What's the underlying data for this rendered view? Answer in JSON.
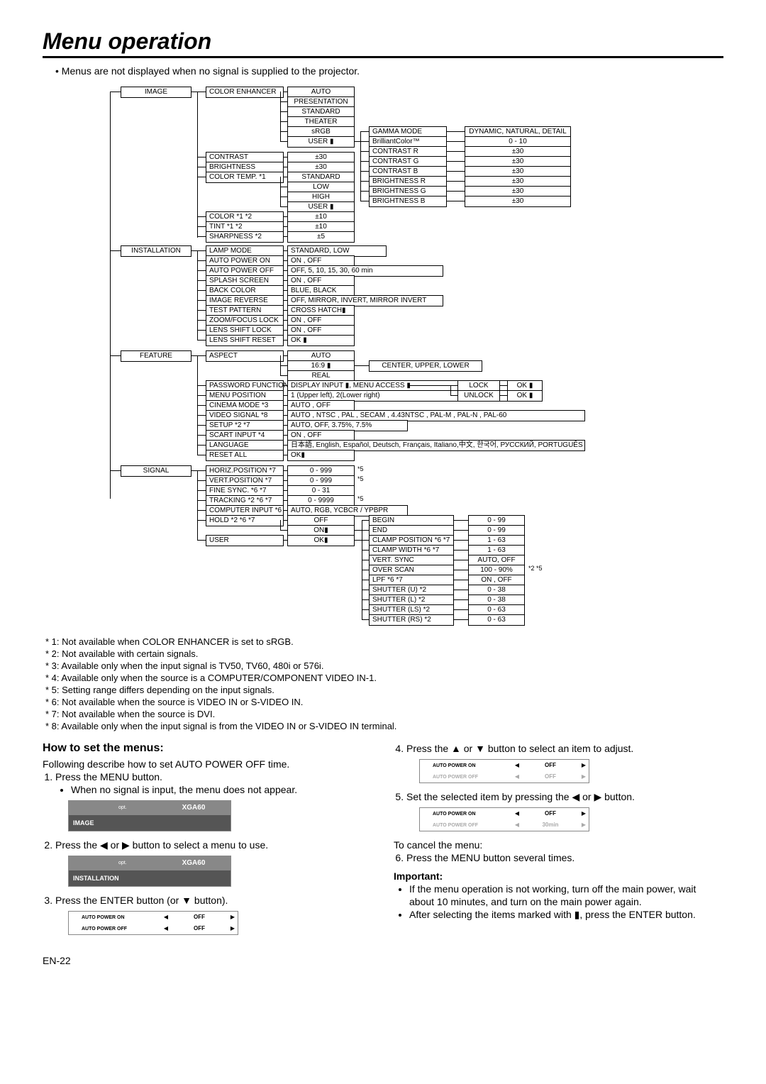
{
  "title": "Menu operation",
  "intro": "Menus are not displayed when no signal is supplied to the projector.",
  "page_num": "EN-22",
  "notes": [
    "* 1: Not available when COLOR ENHANCER is set to sRGB.",
    "* 2: Not available with certain signals.",
    "* 3: Available only when the input signal is TV50, TV60, 480i or 576i.",
    "* 4: Available only when the source is a COMPUTER/COMPONENT VIDEO IN-1.",
    "* 5: Setting range differs depending on the input signals.",
    "* 6: Not available when the source is VIDEO IN or S-VIDEO IN.",
    "* 7: Not available when the source is DVI.",
    "* 8: Available only when the input signal is from the VIDEO IN or S-VIDEO IN terminal."
  ],
  "howto_title": "How to set the menus:",
  "howto_intro": "Following describe how to set AUTO POWER OFF time.",
  "steps_left": [
    "Press the MENU button.",
    "When no signal is input, the menu does not appear.",
    "Press the ◀ or ▶ button to select a menu to use.",
    "Press the ENTER button (or ▼ button)."
  ],
  "steps_right": [
    "Press the ▲ or ▼ button to select an item to adjust.",
    "Set the selected item by pressing the ◀ or ▶ button.",
    "To cancel the menu:",
    "Press the MENU button several times."
  ],
  "important_title": "Important:",
  "important": [
    "If the menu operation is not working, turn off the main power, wait about 10 minutes, and turn on the main power again.",
    "After selecting the items marked with ▮, press the ENTER button."
  ],
  "osd_label_image": "IMAGE",
  "osd_label_install": "INSTALLATION",
  "osd_xga": "XGA60",
  "osd_r1": "AUTO POWER ON",
  "osd_r2": "AUTO POWER OFF",
  "off": "OFF",
  "thirty": "30min",
  "tree": {
    "c1": [
      "IMAGE",
      "INSTALLATION",
      "FEATURE",
      "SIGNAL"
    ],
    "c2_image": [
      "COLOR ENHANCER",
      "CONTRAST",
      "BRIGHTNESS",
      "COLOR TEMP.   *1",
      "COLOR       *1 *2",
      "TINT         *1 *2",
      "SHARPNESS    *2"
    ],
    "c3_image_enh": [
      "AUTO",
      "PRESENTATION",
      "STANDARD",
      "THEATER",
      "sRGB",
      "USER ▮"
    ],
    "c3_image_vals": [
      "±30",
      "±30",
      "STANDARD",
      "LOW",
      "HIGH",
      "USER ▮",
      "±10",
      "±10",
      "±5"
    ],
    "c4_user": [
      "GAMMA MODE",
      "BrilliantColor™",
      "CONTRAST R",
      "CONTRAST G",
      "CONTRAST B",
      "BRIGHTNESS R",
      "BRIGHTNESS G",
      "BRIGHTNESS B"
    ],
    "c5_user": [
      "DYNAMIC, NATURAL, DETAIL",
      "0 - 10",
      "±30",
      "±30",
      "±30",
      "±30",
      "±30",
      "±30"
    ],
    "c2_inst": [
      "LAMP MODE",
      "AUTO POWER ON",
      "AUTO POWER OFF",
      "SPLASH SCREEN",
      "BACK COLOR",
      "IMAGE REVERSE",
      "TEST PATTERN",
      "ZOOM/FOCUS LOCK",
      "LENS SHIFT LOCK",
      "LENS SHIFT RESET"
    ],
    "c3_inst": [
      "STANDARD, LOW",
      "ON , OFF",
      "OFF, 5, 10, 15, 30, 60 min",
      "ON , OFF",
      "BLUE, BLACK",
      "OFF, MIRROR, INVERT, MIRROR INVERT",
      "CROSS HATCH▮",
      "ON , OFF",
      "ON , OFF",
      "OK ▮"
    ],
    "c2_feat": [
      "ASPECT",
      "PASSWORD FUNCTION",
      "MENU POSITION",
      "CINEMA MODE  *3",
      "VIDEO SIGNAL  *8",
      "SETUP      *2 *7",
      "SCART INPUT  *4",
      "LANGUAGE",
      "RESET ALL"
    ],
    "c3_feat_aspect": [
      "AUTO",
      "16:9 ▮",
      "REAL"
    ],
    "c4_feat_aspect": "CENTER, UPPER, LOWER",
    "c3_feat_other": [
      "DISPLAY INPUT ▮, MENU ACCESS ▮",
      "1 (Upper left), 2(Lower right)",
      "AUTO , OFF",
      "AUTO , NTSC , PAL , SECAM , 4.43NTSC , PAL-M , PAL-N , PAL-60",
      "AUTO, OFF, 3.75%, 7.5%",
      "ON , OFF",
      "日本語, English, Español, Deutsch, Français, Italiano,中文, 한국어, РУССКИЙ, PORTUGUÊS",
      "OK▮"
    ],
    "c4_feat_lock": [
      "LOCK",
      "UNLOCK"
    ],
    "c5_feat_lock": [
      "OK ▮",
      "OK ▮"
    ],
    "c2_sig": [
      "HORIZ.POSITION  *7",
      "VERT.POSITION   *7",
      "FINE SYNC.   *6 *7",
      "TRACKING  *2 *6 *7",
      "COMPUTER INPUT    *6",
      "HOLD     *2 *6 *7",
      "USER"
    ],
    "c3_sig": [
      "0 - 999",
      "0 - 999",
      "0 - 31",
      "0 - 9999",
      "AUTO, RGB, YCBCR / YPBPR",
      "OFF",
      "ON▮",
      "OK▮"
    ],
    "c3_sig_star": [
      "*5",
      "*5",
      "",
      "*5"
    ],
    "c4_sig": [
      "BEGIN",
      "END",
      "CLAMP POSITION *6 *7",
      "CLAMP WIDTH  *6 *7",
      "VERT. SYNC",
      "OVER SCAN",
      "LPF        *6 *7",
      "SHUTTER (U)   *2",
      "SHUTTER (L)   *2",
      "SHUTTER (LS)  *2",
      "SHUTTER (RS)  *2"
    ],
    "c5_sig": [
      "0 - 99",
      "0 - 99",
      "1 - 63",
      "1 - 63",
      "AUTO, OFF",
      "100 - 90%",
      "ON , OFF",
      "0 - 38",
      "0 - 38",
      "0 - 63",
      "0 - 63"
    ],
    "c5_sig_tail": "*2 *5"
  }
}
